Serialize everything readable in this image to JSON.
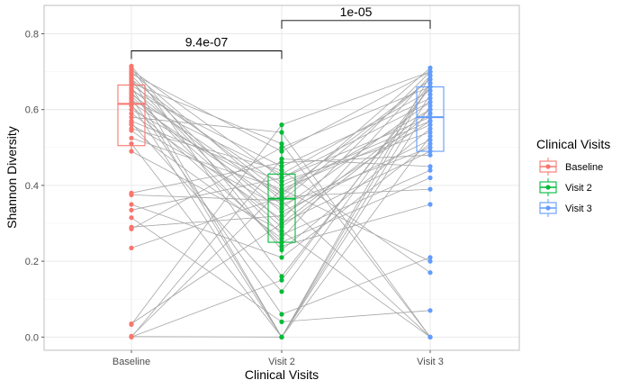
{
  "chart_data": {
    "type": "box+scatter (paired lines)",
    "title": "",
    "xlabel": "Clinical Visits",
    "ylabel": "Shannon Diversity",
    "ylim": [
      -0.035,
      0.875
    ],
    "yticks": [
      0.0,
      0.2,
      0.4,
      0.6,
      0.8
    ],
    "ytick_labels": [
      "0.0",
      "0.2",
      "0.4",
      "0.6",
      "0.8"
    ],
    "categories": [
      "Baseline",
      "Visit 2",
      "Visit 3"
    ],
    "grid": true,
    "legend": {
      "title": "Clinical Visits",
      "placement": "right",
      "entries": [
        "Baseline",
        "Visit 2",
        "Visit 3"
      ]
    },
    "series": [
      {
        "name": "Baseline",
        "color": "#F8766D",
        "box": {
          "min": 0.49,
          "q1": 0.505,
          "median": 0.615,
          "q3": 0.665,
          "max": 0.715
        },
        "values": [
          0.715,
          0.71,
          0.705,
          0.7,
          0.695,
          0.69,
          0.685,
          0.68,
          0.675,
          0.67,
          0.665,
          0.66,
          0.655,
          0.65,
          0.645,
          0.64,
          0.635,
          0.63,
          0.625,
          0.62,
          0.615,
          0.61,
          0.6,
          0.59,
          0.58,
          0.57,
          0.565,
          0.56,
          0.55,
          0.545,
          0.525,
          0.51,
          0.49,
          0.38,
          0.375,
          0.35,
          0.335,
          0.315,
          0.29,
          0.285,
          0.235,
          0.035,
          0.033,
          0.002,
          0.001,
          0.0,
          0.0
        ]
      },
      {
        "name": "Visit 2",
        "color": "#00BA38",
        "box": {
          "min": 0.22,
          "q1": 0.25,
          "median": 0.365,
          "q3": 0.43,
          "max": 0.56
        },
        "values": [
          0.23,
          0.16,
          0.42,
          0.36,
          0.49,
          0.3,
          0.0,
          0.38,
          0.27,
          0.51,
          0.4,
          0.0,
          0.33,
          0.45,
          0.24,
          0.37,
          0.29,
          0.06,
          0.43,
          0.35,
          0.0,
          0.25,
          0.38,
          0.31,
          0.54,
          0.41,
          0.12,
          0.34,
          0.44,
          0.26,
          0.39,
          0.0,
          0.28,
          0.46,
          0.36,
          0.21,
          0.42,
          0.04,
          0.32,
          0.5,
          0.37,
          0.3,
          0.56,
          0.39,
          0.0,
          0.15,
          0.47
        ]
      },
      {
        "name": "Visit 3",
        "color": "#619CFF",
        "box": {
          "min": 0.49,
          "q1": 0.49,
          "median": 0.58,
          "q3": 0.66,
          "max": 0.71
        },
        "values": [
          0.55,
          0.66,
          0.58,
          0.0,
          0.7,
          0.49,
          0.61,
          0.68,
          0.44,
          0.0,
          0.57,
          0.69,
          0.52,
          0.63,
          0.35,
          0.71,
          0.59,
          0.21,
          0.65,
          0.5,
          0.67,
          0.42,
          0.6,
          0.7,
          0.0,
          0.54,
          0.66,
          0.62,
          0.17,
          0.69,
          0.56,
          0.64,
          0.0,
          0.48,
          0.68,
          0.51,
          0.62,
          0.07,
          0.57,
          0.66,
          0.39,
          0.6,
          0.7,
          0.2,
          0.53,
          0.67,
          0.45
        ]
      }
    ],
    "annotations": [
      {
        "from": "Baseline",
        "to": "Visit 2",
        "label": "9.4e-07",
        "y": 0.755
      },
      {
        "from": "Visit 2",
        "to": "Visit 3",
        "label": "1e-05",
        "y": 0.835
      }
    ]
  }
}
